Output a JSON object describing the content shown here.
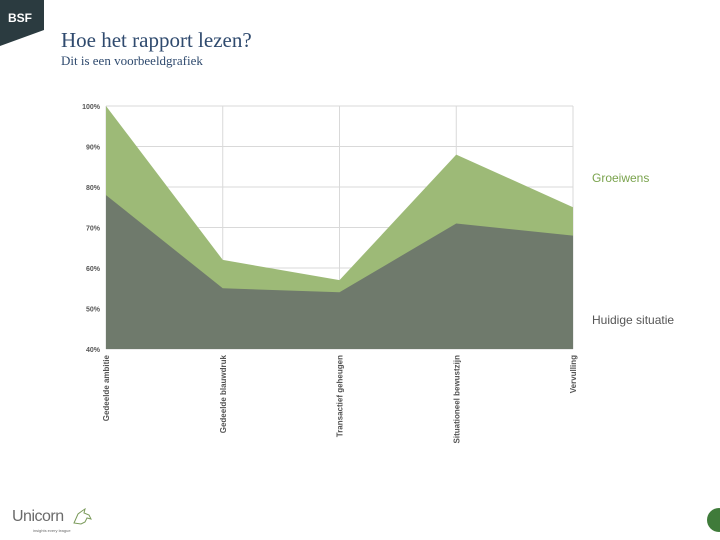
{
  "header": {
    "logo_text": "BSF",
    "title": "Hoe het rapport lezen?",
    "subtitle": "Dit is een voorbeeldgrafiek"
  },
  "chart_data": {
    "type": "area",
    "categories": [
      "Gedeelde ambitie",
      "Gedeelde blauwdruk",
      "Transactief geheugen",
      "Situationeel bewustzijn",
      "Vervulling"
    ],
    "y_ticks": [
      "40%",
      "50%",
      "60%",
      "70%",
      "80%",
      "90%",
      "100%"
    ],
    "ylim": [
      40,
      100
    ],
    "series": [
      {
        "name": "Groeiwens",
        "values": [
          100,
          62,
          57,
          88,
          75
        ],
        "color": "#9dba77"
      },
      {
        "name": "Huidige situatie",
        "values": [
          78,
          55,
          54,
          71,
          68
        ],
        "color": "#6f7a6c"
      }
    ],
    "grid": true,
    "legend": "right"
  },
  "footer": {
    "brand": "Unicorn",
    "tagline": "insights every league"
  }
}
